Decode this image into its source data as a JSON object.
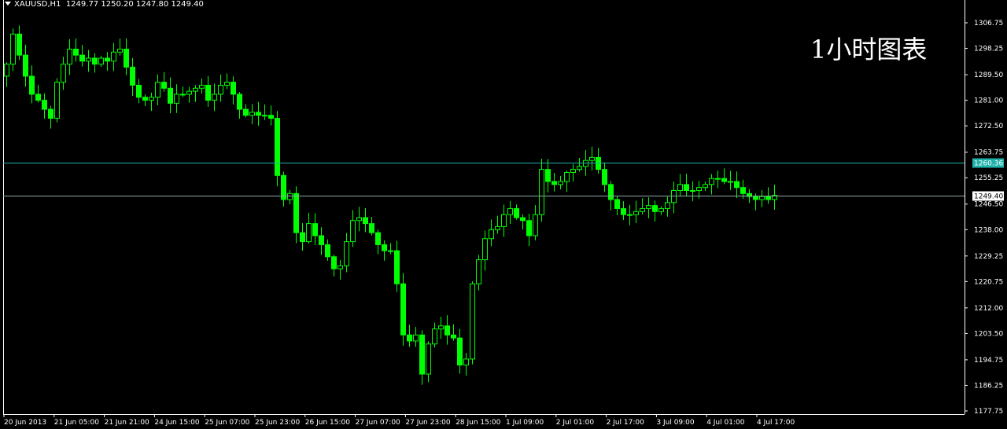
{
  "header": {
    "symbol": "XAUUSD,H1",
    "open": "1249.77",
    "high": "1250.20",
    "low": "1247.80",
    "close": "1249.40"
  },
  "overlay_title": "1小时图表",
  "colors": {
    "background": "#000000",
    "candle": "#00ff00",
    "axis": "#ffffff",
    "hline": "#20b2aa",
    "hline_label": "#20b2aa"
  },
  "chart_data": {
    "type": "candlestick",
    "title": "",
    "ylim": [
      1177.75,
      1306.75
    ],
    "y_ticks": [
      "1306.75",
      "1298.25",
      "1289.50",
      "1281.00",
      "1272.50",
      "1263.75",
      "1255.25",
      "1246.50",
      "1238.00",
      "1229.25",
      "1220.75",
      "1212.00",
      "1203.50",
      "1194.75",
      "1186.25",
      "1177.75"
    ],
    "x_ticks": [
      "20 Jun 2013",
      "21 Jun 05:00",
      "21 Jun 21:00",
      "24 Jun 15:00",
      "25 Jun 07:00",
      "25 Jun 23:00",
      "26 Jun 15:00",
      "27 Jun 07:00",
      "27 Jun 23:00",
      "28 Jun 15:00",
      "1 Jul 09:00",
      "2 Jul 01:00",
      "2 Jul 17:00",
      "3 Jul 09:00",
      "4 Jul 01:00",
      "4 Jul 17:00"
    ],
    "horizontal_lines": [
      {
        "value": 1260.36,
        "label": "1260.36",
        "style": "cyan"
      },
      {
        "value": 1249.4,
        "label": "1249.40",
        "style": "bid"
      }
    ],
    "grid": false,
    "closes": [
      1293,
      1303,
      1296,
      1289,
      1283,
      1281,
      1278,
      1275,
      1287,
      1293,
      1298,
      1296,
      1294,
      1295,
      1293,
      1295,
      1294,
      1297,
      1298,
      1292,
      1286,
      1282,
      1281,
      1282,
      1287,
      1285,
      1280,
      1283,
      1283,
      1284,
      1285,
      1286,
      1281,
      1283,
      1286,
      1287,
      1283,
      1278,
      1276,
      1277,
      1276,
      1276,
      1275,
      1256,
      1248,
      1250,
      1237,
      1234,
      1240,
      1236,
      1233,
      1229,
      1225,
      1226,
      1234,
      1241,
      1242,
      1240,
      1237,
      1233,
      1231,
      1231,
      1220,
      1203,
      1201,
      1203,
      1190,
      1200,
      1205,
      1206,
      1203,
      1202,
      1193,
      1195,
      1220,
      1228,
      1235,
      1238,
      1239,
      1243,
      1245,
      1242,
      1241,
      1236,
      1243,
      1258,
      1254,
      1253,
      1254,
      1257,
      1258,
      1259,
      1261,
      1262,
      1258,
      1253,
      1248,
      1245,
      1243,
      1243,
      1244,
      1245,
      1246,
      1244,
      1245,
      1247,
      1251,
      1253,
      1251,
      1251,
      1252,
      1253,
      1255,
      1255,
      1254,
      1254,
      1252,
      1250,
      1249,
      1248,
      1249,
      1248,
      1249.4
    ]
  }
}
